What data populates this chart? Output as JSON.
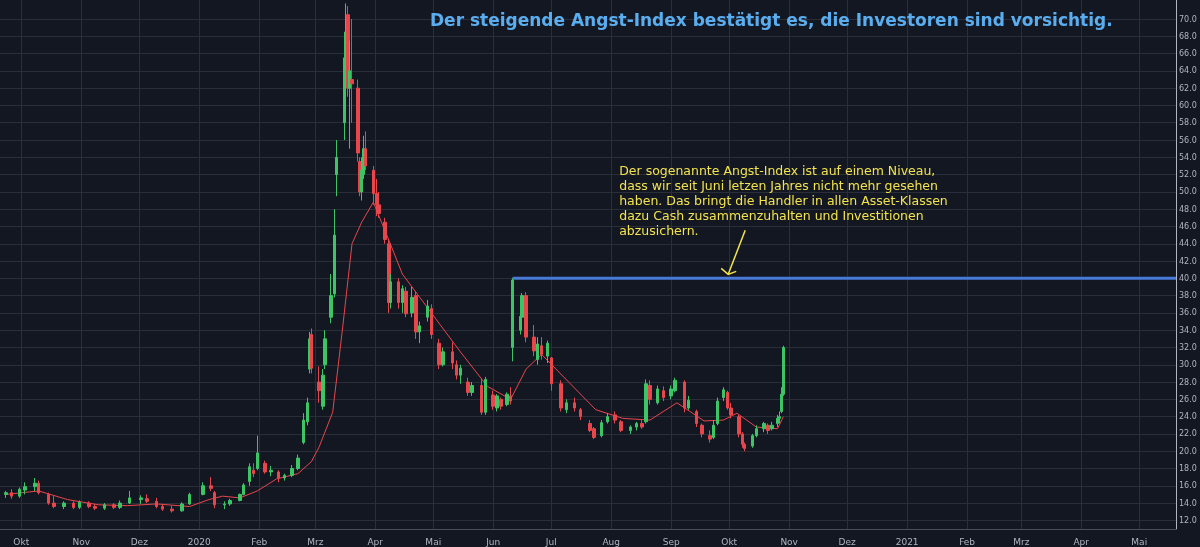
{
  "chart_data": {
    "type": "candlestick",
    "title": "Der steigende Angst-Index bestätigt es, die Investoren sind vorsichtig.",
    "xlim": [
      "2019-09-20",
      "2021-05-20"
    ],
    "xticks": [
      {
        "value": "2019-10-01",
        "label": "Okt"
      },
      {
        "value": "2019-11-01",
        "label": "Nov"
      },
      {
        "value": "2019-12-01",
        "label": "Dez"
      },
      {
        "value": "2020-01-01",
        "label": "2020"
      },
      {
        "value": "2020-02-01",
        "label": "Feb"
      },
      {
        "value": "2020-03-01",
        "label": "Mrz"
      },
      {
        "value": "2020-04-01",
        "label": "Apr"
      },
      {
        "value": "2020-05-01",
        "label": "Mai"
      },
      {
        "value": "2020-06-01",
        "label": "Jun"
      },
      {
        "value": "2020-07-01",
        "label": "Jul"
      },
      {
        "value": "2020-08-01",
        "label": "Aug"
      },
      {
        "value": "2020-09-01",
        "label": "Sep"
      },
      {
        "value": "2020-10-01",
        "label": "Okt"
      },
      {
        "value": "2020-11-01",
        "label": "Nov"
      },
      {
        "value": "2020-12-01",
        "label": "Dez"
      },
      {
        "value": "2021-01-01",
        "label": "2021"
      },
      {
        "value": "2021-02-01",
        "label": "Feb"
      },
      {
        "value": "2021-03-01",
        "label": "Mrz"
      },
      {
        "value": "2021-04-01",
        "label": "Apr"
      },
      {
        "value": "2021-05-01",
        "label": "Mai"
      }
    ],
    "ylim": [
      11,
      72.2
    ],
    "yticks": [
      {
        "value": 12,
        "label": "12.0"
      },
      {
        "value": 14,
        "label": "14.0"
      },
      {
        "value": 16,
        "label": "16.0"
      },
      {
        "value": 18,
        "label": "18.0"
      },
      {
        "value": 20,
        "label": "20.0"
      },
      {
        "value": 22,
        "label": "22.0"
      },
      {
        "value": 24,
        "label": "24.0"
      },
      {
        "value": 26,
        "label": "26.0"
      },
      {
        "value": 28,
        "label": "28.0"
      },
      {
        "value": 30,
        "label": "30.0"
      },
      {
        "value": 32,
        "label": "32.0"
      },
      {
        "value": 34,
        "label": "34.0"
      },
      {
        "value": 36,
        "label": "36.0"
      },
      {
        "value": 38,
        "label": "38.0"
      },
      {
        "value": 40,
        "label": "40.0"
      },
      {
        "value": 42,
        "label": "42.0"
      },
      {
        "value": 44,
        "label": "44.0"
      },
      {
        "value": 46,
        "label": "46.0"
      },
      {
        "value": 48,
        "label": "48.0"
      },
      {
        "value": 50,
        "label": "50.0"
      },
      {
        "value": 52,
        "label": "52.0"
      },
      {
        "value": 54,
        "label": "54.0"
      },
      {
        "value": 56,
        "label": "56.0"
      },
      {
        "value": 58,
        "label": "58.0"
      },
      {
        "value": 60,
        "label": "60.0"
      },
      {
        "value": 62,
        "label": "62.0"
      },
      {
        "value": 64,
        "label": "64.0"
      },
      {
        "value": 66,
        "label": "66.0"
      },
      {
        "value": 68,
        "label": "68.0"
      },
      {
        "value": 70,
        "label": "70.0"
      }
    ],
    "grid": true,
    "annotations": [
      {
        "text": "Der sogenannte Angst-Index ist auf einem Niveau,\ndass wir seit Juni letzen Jahres nicht mehr gesehen\nhaben. Das bringt die Handler in allen Asset-Klassen\ndazu Cash zusammenzuhalten und Investitionen\nabzusichern.",
        "x": "2020-10-01",
        "y": 40
      }
    ],
    "series": [
      {
        "x": [
          "2019-09-23",
          "2019-09-26",
          "2019-09-30",
          "2019-10-03",
          "2019-10-08",
          "2019-10-10",
          "2019-10-15",
          "2019-10-18",
          "2019-10-23",
          "2019-10-28",
          "2019-10-31",
          "2019-11-05",
          "2019-11-08",
          "2019-11-13",
          "2019-11-18",
          "2019-11-21",
          "2019-11-26",
          "2019-12-02",
          "2019-12-05",
          "2019-12-10",
          "2019-12-13",
          "2019-12-18",
          "2019-12-23",
          "2019-12-27",
          "2020-01-03",
          "2020-01-07",
          "2020-01-09",
          "2020-01-14",
          "2020-01-17",
          "2020-01-22",
          "2020-01-24",
          "2020-01-27",
          "2020-01-29",
          "2020-01-31",
          "2020-02-04",
          "2020-02-07",
          "2020-02-11",
          "2020-02-14",
          "2020-02-18",
          "2020-02-21",
          "2020-02-24",
          "2020-02-26",
          "2020-02-27",
          "2020-02-28",
          "2020-03-03",
          "2020-03-05",
          "2020-03-06",
          "2020-03-09",
          "2020-03-11",
          "2020-03-12",
          "2020-03-16",
          "2020-03-17",
          "2020-03-18",
          "2020-03-19",
          "2020-03-20",
          "2020-03-23",
          "2020-03-24",
          "2020-03-25",
          "2020-03-26",
          "2020-03-27",
          "2020-03-31",
          "2020-04-02",
          "2020-04-03",
          "2020-04-06",
          "2020-04-08",
          "2020-04-09",
          "2020-04-13",
          "2020-04-15",
          "2020-04-17",
          "2020-04-20",
          "2020-04-22",
          "2020-04-24",
          "2020-04-28",
          "2020-04-30",
          "2020-05-04",
          "2020-05-06",
          "2020-05-11",
          "2020-05-13",
          "2020-05-15",
          "2020-05-19",
          "2020-05-21",
          "2020-05-26",
          "2020-05-28",
          "2020-06-01",
          "2020-06-03",
          "2020-06-05",
          "2020-06-08",
          "2020-06-10",
          "2020-06-11",
          "2020-06-15",
          "2020-06-16",
          "2020-06-18",
          "2020-06-22",
          "2020-06-24",
          "2020-06-26",
          "2020-06-29",
          "2020-07-01",
          "2020-07-06",
          "2020-07-09",
          "2020-07-13",
          "2020-07-16",
          "2020-07-21",
          "2020-07-23",
          "2020-07-27",
          "2020-07-30",
          "2020-08-03",
          "2020-08-06",
          "2020-08-11",
          "2020-08-14",
          "2020-08-17",
          "2020-08-19",
          "2020-08-21",
          "2020-08-25",
          "2020-08-28",
          "2020-09-01",
          "2020-09-03",
          "2020-09-08",
          "2020-09-10",
          "2020-09-14",
          "2020-09-17",
          "2020-09-21",
          "2020-09-23",
          "2020-09-25",
          "2020-09-28",
          "2020-09-30",
          "2020-10-02",
          "2020-10-06",
          "2020-10-08",
          "2020-10-09",
          "2020-10-13",
          "2020-10-15",
          "2020-10-19",
          "2020-10-21",
          "2020-10-23",
          "2020-10-26",
          "2020-10-27",
          "2020-10-28",
          "2020-10-29"
        ],
        "ohlc": [
          [
            15.0,
            15.4,
            14.6,
            15.2
          ],
          [
            15.2,
            15.6,
            14.5,
            14.8
          ],
          [
            14.8,
            15.8,
            14.6,
            15.6
          ],
          [
            15.5,
            16.4,
            15.0,
            15.9
          ],
          [
            15.9,
            16.9,
            15.4,
            16.3
          ],
          [
            16.3,
            16.6,
            15.0,
            15.2
          ],
          [
            15.0,
            15.2,
            13.8,
            14.0
          ],
          [
            14.0,
            14.8,
            13.4,
            13.6
          ],
          [
            13.6,
            14.2,
            13.3,
            14.0
          ],
          [
            14.0,
            14.2,
            13.3,
            13.5
          ],
          [
            13.5,
            14.3,
            13.3,
            14.1
          ],
          [
            14.0,
            14.2,
            13.4,
            13.6
          ],
          [
            13.6,
            13.9,
            13.2,
            13.4
          ],
          [
            13.4,
            14.0,
            13.2,
            13.8
          ],
          [
            13.8,
            14.0,
            13.3,
            13.5
          ],
          [
            13.5,
            14.3,
            13.3,
            14.0
          ],
          [
            14.0,
            15.4,
            13.9,
            14.6
          ],
          [
            14.4,
            14.9,
            13.9,
            14.6
          ],
          [
            14.5,
            15.0,
            14.0,
            14.2
          ],
          [
            14.2,
            14.6,
            13.4,
            13.6
          ],
          [
            13.6,
            13.9,
            13.1,
            13.3
          ],
          [
            13.3,
            13.7,
            12.9,
            13.1
          ],
          [
            13.1,
            14.1,
            13.0,
            13.9
          ],
          [
            13.9,
            15.2,
            13.8,
            15.0
          ],
          [
            15.0,
            16.4,
            14.9,
            16.0
          ],
          [
            16.0,
            17.0,
            15.4,
            15.7
          ],
          [
            15.2,
            15.4,
            13.4,
            13.8
          ],
          [
            13.8,
            14.2,
            13.3,
            13.9
          ],
          [
            13.9,
            14.5,
            13.7,
            14.3
          ],
          [
            14.3,
            15.1,
            14.2,
            15.0
          ],
          [
            15.0,
            16.3,
            14.9,
            16.1
          ],
          [
            16.5,
            18.6,
            16.0,
            18.2
          ],
          [
            17.8,
            18.6,
            17.0,
            17.4
          ],
          [
            18.0,
            21.8,
            17.8,
            19.8
          ],
          [
            18.6,
            18.9,
            17.4,
            17.6
          ],
          [
            17.6,
            18.3,
            17.1,
            17.8
          ],
          [
            17.6,
            17.8,
            16.4,
            16.9
          ],
          [
            16.9,
            17.4,
            16.6,
            17.2
          ],
          [
            17.2,
            18.4,
            17.0,
            18.0
          ],
          [
            18.0,
            19.6,
            17.8,
            19.2
          ],
          [
            21.0,
            24.4,
            20.8,
            23.6
          ],
          [
            23.4,
            26.2,
            23.0,
            25.6
          ],
          [
            29.5,
            33.8,
            29.0,
            33.0
          ],
          [
            33.5,
            34.2,
            29.0,
            29.6
          ],
          [
            28.0,
            29.8,
            25.6,
            27.0
          ],
          [
            25.2,
            29.5,
            24.8,
            28.8
          ],
          [
            30.0,
            34.0,
            29.5,
            33.0
          ],
          [
            35.5,
            40.5,
            34.8,
            38.0
          ],
          [
            38.2,
            48.0,
            37.8,
            45.0
          ],
          [
            52.0,
            56.0,
            49.5,
            54.0
          ],
          [
            58.0,
            68.5,
            56.0,
            65.5
          ],
          [
            65.0,
            71.8,
            62.0,
            68.5
          ],
          [
            70.5,
            71.5,
            61.0,
            62.0
          ],
          [
            62.0,
            67.5,
            55.0,
            64.0
          ],
          [
            63.0,
            70.0,
            58.0,
            62.5
          ],
          [
            62.0,
            63.0,
            53.5,
            54.5
          ],
          [
            53.5,
            54.0,
            49.5,
            50.0
          ],
          [
            50.0,
            54.0,
            49.0,
            52.5
          ],
          [
            52.0,
            56.5,
            51.5,
            55.0
          ],
          [
            55.0,
            57.0,
            52.5,
            53.0
          ],
          [
            52.5,
            53.0,
            48.5,
            49.8
          ],
          [
            49.8,
            51.5,
            47.2,
            48.5
          ],
          [
            48.5,
            50.0,
            47.0,
            47.5
          ],
          [
            46.5,
            47.0,
            44.0,
            44.5
          ],
          [
            44.0,
            44.5,
            36.0,
            37.2
          ],
          [
            37.2,
            40.5,
            36.5,
            39.6
          ],
          [
            39.6,
            40.0,
            36.5,
            37.2
          ],
          [
            37.2,
            39.2,
            36.0,
            38.8
          ],
          [
            38.5,
            39.0,
            35.5,
            35.9
          ],
          [
            36.0,
            39.0,
            35.5,
            37.8
          ],
          [
            38.0,
            38.5,
            33.0,
            33.8
          ],
          [
            33.8,
            35.0,
            32.5,
            34.5
          ],
          [
            35.5,
            37.5,
            35.0,
            36.8
          ],
          [
            36.5,
            37.0,
            33.0,
            33.5
          ],
          [
            32.5,
            33.0,
            29.5,
            30.0
          ],
          [
            30.0,
            32.0,
            29.8,
            31.5
          ],
          [
            31.5,
            32.6,
            29.5,
            30.2
          ],
          [
            30.0,
            30.5,
            28.3,
            28.8
          ],
          [
            28.8,
            30.0,
            27.8,
            29.6
          ],
          [
            28.0,
            28.5,
            26.4,
            26.8
          ],
          [
            26.8,
            28.0,
            26.4,
            27.6
          ],
          [
            27.6,
            28.4,
            24.2,
            24.5
          ],
          [
            24.5,
            28.6,
            24.2,
            28.3
          ],
          [
            26.5,
            27.0,
            24.8,
            25.2
          ],
          [
            25.0,
            26.6,
            24.6,
            26.4
          ],
          [
            26.0,
            26.2,
            24.8,
            25.2
          ],
          [
            25.4,
            26.8,
            25.2,
            26.6
          ],
          [
            26.4,
            27.4,
            25.4,
            25.8
          ],
          [
            32.0,
            40.0,
            30.4,
            39.8
          ],
          [
            34.0,
            36.0,
            33.5,
            35.6
          ],
          [
            35.5,
            38.3,
            34.0,
            38.0
          ],
          [
            38.0,
            38.4,
            32.6,
            33.2
          ],
          [
            33.2,
            34.6,
            31.0,
            31.6
          ],
          [
            30.6,
            33.2,
            30.0,
            32.4
          ],
          [
            32.2,
            33.2,
            30.6,
            31.2
          ],
          [
            31.0,
            32.8,
            30.2,
            32.5
          ],
          [
            30.8,
            30.9,
            27.0,
            27.8
          ],
          [
            27.8,
            28.2,
            24.6,
            25.0
          ],
          [
            24.8,
            26.0,
            24.4,
            25.6
          ],
          [
            25.6,
            26.2,
            24.6,
            25.0
          ],
          [
            24.8,
            25.0,
            23.6,
            24.0
          ],
          [
            23.2,
            23.6,
            22.2,
            22.4
          ],
          [
            22.6,
            22.8,
            21.4,
            21.6
          ],
          [
            21.8,
            23.6,
            21.6,
            23.3
          ],
          [
            23.4,
            24.4,
            23.2,
            24.0
          ],
          [
            24.2,
            24.6,
            23.2,
            23.6
          ],
          [
            23.4,
            23.6,
            22.2,
            22.4
          ],
          [
            22.4,
            23.0,
            22.0,
            22.8
          ],
          [
            22.8,
            23.4,
            22.4,
            23.2
          ],
          [
            23.2,
            23.6,
            22.6,
            22.8
          ],
          [
            23.4,
            28.3,
            23.2,
            27.8
          ],
          [
            27.6,
            28.2,
            25.4,
            26.0
          ],
          [
            25.6,
            27.6,
            25.4,
            27.2
          ],
          [
            27.0,
            27.5,
            25.8,
            26.2
          ],
          [
            26.4,
            27.6,
            26.0,
            27.2
          ],
          [
            27.0,
            28.5,
            26.8,
            28.2
          ],
          [
            28.0,
            28.2,
            24.5,
            25.0
          ],
          [
            25.0,
            26.4,
            24.8,
            25.9
          ],
          [
            24.6,
            24.8,
            22.8,
            23.2
          ],
          [
            23.0,
            23.2,
            21.6,
            22.0
          ],
          [
            21.8,
            22.4,
            21.0,
            21.4
          ],
          [
            21.6,
            23.6,
            21.4,
            23.0
          ],
          [
            23.2,
            26.2,
            23.0,
            25.8
          ],
          [
            26.2,
            27.4,
            25.8,
            27.1
          ],
          [
            26.8,
            27.0,
            24.8,
            25.0
          ],
          [
            25.0,
            25.6,
            23.8,
            24.2
          ],
          [
            24.0,
            24.2,
            21.6,
            22.0
          ],
          [
            22.0,
            22.2,
            20.4,
            20.8
          ],
          [
            20.8,
            21.0,
            20.0,
            20.3
          ],
          [
            20.6,
            22.0,
            20.4,
            21.8
          ],
          [
            21.8,
            23.0,
            21.6,
            22.6
          ],
          [
            22.6,
            23.4,
            22.2,
            23.2
          ],
          [
            23.0,
            23.2,
            22.0,
            22.4
          ],
          [
            22.6,
            23.4,
            22.4,
            23.0
          ],
          [
            23.2,
            24.2,
            22.8,
            23.8
          ],
          [
            23.8,
            24.6,
            23.2,
            24.0
          ],
          [
            24.6,
            27.4,
            24.4,
            26.6
          ],
          [
            26.6,
            32.2,
            26.4,
            32.0
          ]
        ],
        "colors": [
          "#3cc565",
          "#e8464b",
          "#3cc565",
          "#3cc565",
          "#3cc565",
          "#e8464b",
          "#e8464b",
          "#e8464b",
          "#3cc565",
          "#e8464b",
          "#3cc565",
          "#e8464b",
          "#e8464b",
          "#3cc565",
          "#e8464b",
          "#3cc565",
          "#3cc565",
          "#3cc565",
          "#e8464b",
          "#e8464b",
          "#e8464b",
          "#e8464b",
          "#3cc565",
          "#3cc565",
          "#3cc565",
          "#e8464b",
          "#e8464b",
          "#3cc565",
          "#3cc565",
          "#3cc565",
          "#3cc565",
          "#3cc565",
          "#e8464b",
          "#3cc565",
          "#e8464b",
          "#3cc565",
          "#e8464b",
          "#3cc565",
          "#3cc565",
          "#3cc565",
          "#3cc565",
          "#3cc565",
          "#3cc565",
          "#e8464b",
          "#e8464b",
          "#3cc565",
          "#3cc565",
          "#3cc565",
          "#3cc565",
          "#3cc565",
          "#3cc565",
          "#3cc565",
          "#e8464b",
          "#3cc565",
          "#e8464b",
          "#e8464b",
          "#e8464b",
          "#3cc565",
          "#3cc565",
          "#e8464b",
          "#e8464b",
          "#e8464b",
          "#e8464b",
          "#e8464b",
          "#e8464b",
          "#3cc565",
          "#e8464b",
          "#3cc565",
          "#e8464b",
          "#3cc565",
          "#e8464b",
          "#3cc565",
          "#3cc565",
          "#e8464b",
          "#e8464b",
          "#3cc565",
          "#e8464b",
          "#e8464b",
          "#3cc565",
          "#e8464b",
          "#3cc565",
          "#e8464b",
          "#3cc565",
          "#e8464b",
          "#3cc565",
          "#e8464b",
          "#3cc565",
          "#e8464b",
          "#3cc565",
          "#3cc565",
          "#3cc565",
          "#e8464b",
          "#e8464b",
          "#3cc565",
          "#e8464b",
          "#3cc565",
          "#e8464b",
          "#e8464b",
          "#3cc565",
          "#e8464b",
          "#e8464b",
          "#e8464b",
          "#e8464b",
          "#3cc565",
          "#3cc565",
          "#e8464b",
          "#e8464b",
          "#3cc565",
          "#3cc565",
          "#e8464b",
          "#3cc565",
          "#e8464b",
          "#3cc565",
          "#e8464b",
          "#3cc565",
          "#3cc565",
          "#e8464b",
          "#3cc565",
          "#e8464b",
          "#e8464b",
          "#e8464b",
          "#3cc565",
          "#3cc565",
          "#3cc565",
          "#e8464b",
          "#e8464b",
          "#e8464b",
          "#e8464b",
          "#e8464b",
          "#3cc565",
          "#3cc565",
          "#3cc565",
          "#e8464b",
          "#3cc565",
          "#3cc565",
          "#3cc565",
          "#3cc565",
          "#3cc565"
        ]
      },
      {
        "type": "line",
        "color": "#e8464b",
        "x": [
          "2019-09-23",
          "2019-10-10",
          "2019-10-25",
          "2019-11-10",
          "2019-11-25",
          "2019-12-10",
          "2019-12-27",
          "2020-01-06",
          "2020-01-13",
          "2020-01-22",
          "2020-01-31",
          "2020-02-10",
          "2020-02-21",
          "2020-02-28",
          "2020-03-03",
          "2020-03-10",
          "2020-03-15",
          "2020-03-20",
          "2020-03-25",
          "2020-03-31",
          "2020-04-07",
          "2020-04-15",
          "2020-04-30",
          "2020-05-15",
          "2020-05-29",
          "2020-06-10",
          "2020-06-18",
          "2020-06-26",
          "2020-07-10",
          "2020-07-24",
          "2020-08-07",
          "2020-08-21",
          "2020-09-04",
          "2020-09-18",
          "2020-09-28",
          "2020-10-05",
          "2020-10-15",
          "2020-10-26",
          "2020-10-29"
        ],
        "values": [
          15.0,
          15.4,
          14.4,
          13.8,
          13.7,
          13.9,
          13.6,
          14.4,
          14.8,
          14.6,
          15.4,
          16.8,
          17.4,
          18.8,
          20.5,
          24.5,
          34.0,
          44.0,
          46.5,
          48.8,
          45.0,
          40.5,
          36.0,
          31.5,
          27.5,
          26.0,
          29.5,
          31.2,
          28.0,
          24.8,
          23.8,
          23.6,
          25.6,
          23.5,
          23.6,
          24.4,
          22.8,
          22.6,
          24.0
        ]
      },
      {
        "type": "line",
        "color": "#4a7ad8",
        "x": [
          "2020-06-11",
          "2021-05-20"
        ],
        "values": [
          40,
          40
        ]
      }
    ]
  }
}
